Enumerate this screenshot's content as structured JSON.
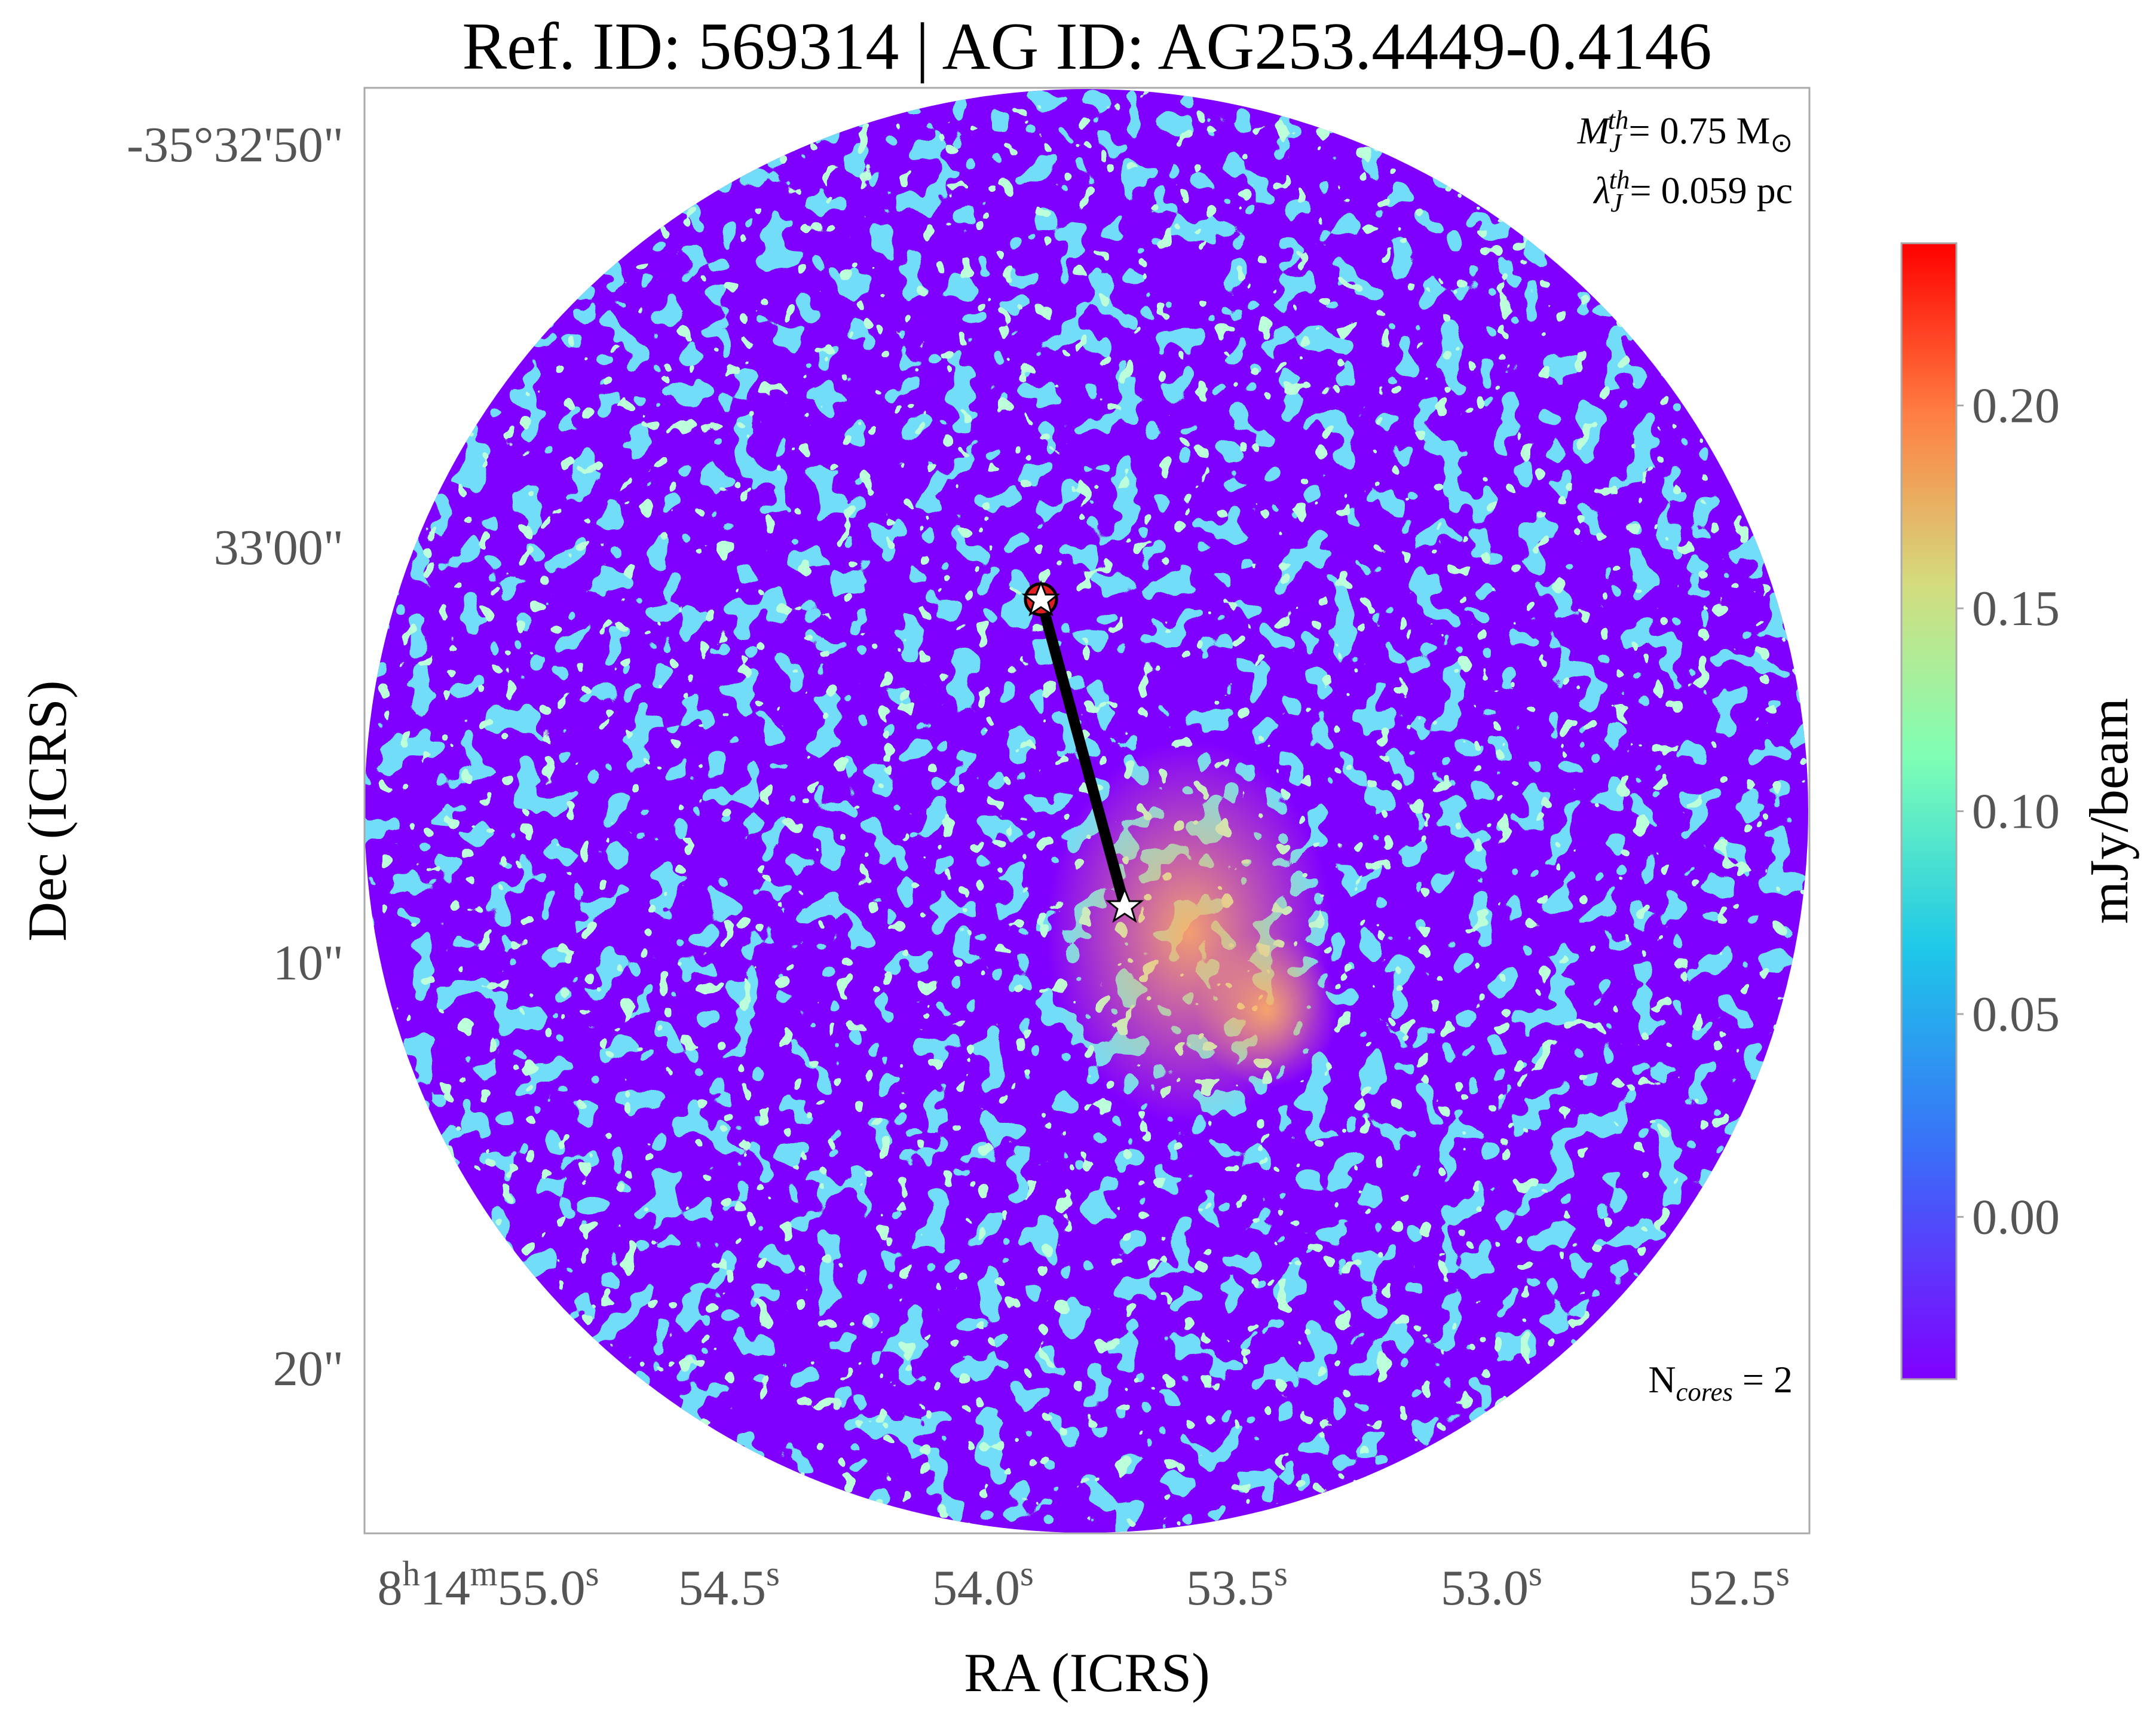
{
  "title": "Ref. ID: 569314 | AG ID: AG253.4449-0.4146",
  "x_axis": {
    "label": "RA (ICRS)",
    "ticks": [
      [
        {
          "text": "8"
        },
        {
          "text": "h",
          "sup": true
        },
        {
          "text": "14"
        },
        {
          "text": "m",
          "sup": true
        },
        {
          "text": "55.0"
        },
        {
          "text": "s",
          "sup": true
        }
      ],
      [
        {
          "text": "54.5"
        },
        {
          "text": "s",
          "sup": true
        }
      ],
      [
        {
          "text": "54.0"
        },
        {
          "text": "s",
          "sup": true
        }
      ],
      [
        {
          "text": "53.5"
        },
        {
          "text": "s",
          "sup": true
        }
      ],
      [
        {
          "text": "53.0"
        },
        {
          "text": "s",
          "sup": true
        }
      ],
      [
        {
          "text": "52.5"
        },
        {
          "text": "s",
          "sup": true
        }
      ]
    ]
  },
  "y_axis": {
    "label": "Dec (ICRS)",
    "ticks": [
      "-35°32'50\"",
      "33'00\"",
      "10\"",
      "20\""
    ]
  },
  "colorbar": {
    "label": "mJy/beam",
    "lim": [
      -0.04,
      0.24
    ],
    "ticks": [
      {
        "value": 0,
        "label": "0.00"
      },
      {
        "value": 0.05,
        "label": "0.05"
      },
      {
        "value": 0.1,
        "label": "0.10"
      },
      {
        "value": 0.15,
        "label": "0.15"
      },
      {
        "value": 0.2,
        "label": "0.20"
      }
    ]
  },
  "annotations": [
    [
      {
        "text": "M",
        "italic": true
      },
      {
        "text": "J",
        "sub": true,
        "italic": true
      },
      {
        "text": "th",
        "sup": true,
        "italic": true
      },
      {
        "text": "= 0.75 M"
      },
      {
        "text": "⊙",
        "sub": true
      }
    ],
    [
      {
        "text": "λ",
        "italic": true
      },
      {
        "text": "J",
        "sub": true,
        "italic": true
      },
      {
        "text": "th",
        "sup": true,
        "italic": true
      },
      {
        "text": "= 0.059 pc"
      }
    ],
    [
      {
        "text": "N"
      },
      {
        "text": "cores",
        "sub": true,
        "italic": true
      },
      {
        "text": " = 2"
      }
    ]
  ]
}
